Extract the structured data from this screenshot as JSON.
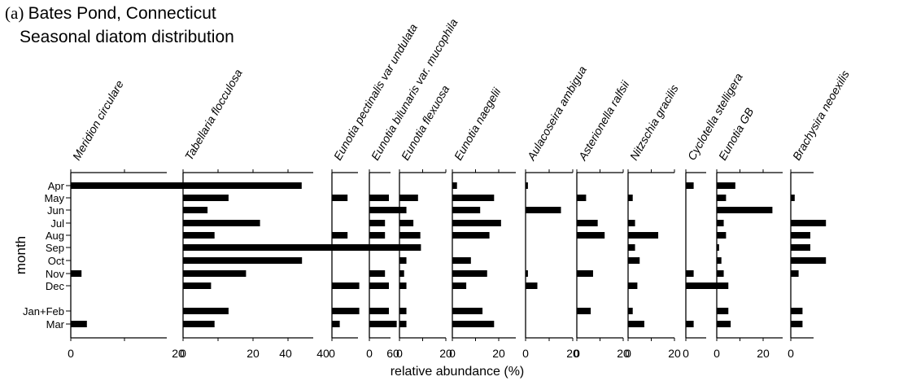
{
  "title_prefix": "(a)",
  "title_line1": "Bates Pond, Connecticut",
  "title_line2": "Seasonal diatom distribution",
  "chart_data": {
    "type": "bar",
    "orientation": "horizontal",
    "ylabel": "month",
    "xlabel": "relative abundance (%)",
    "categories": [
      "Apr",
      "May",
      "Jun",
      "Jul",
      "Aug",
      "Sep",
      "Oct",
      "Nov",
      "Dec",
      "Jan+Feb",
      "Mar"
    ],
    "series": [
      {
        "name": "Meridion circulare",
        "xlim": [
          0,
          50
        ],
        "ticks": [
          0,
          20,
          40
        ],
        "values": [
          43,
          0,
          0,
          0,
          0,
          0,
          0,
          2,
          0,
          0,
          3
        ]
      },
      {
        "name": "Tabellaria flocculosa",
        "xlim": [
          0,
          75
        ],
        "ticks": [
          0,
          20,
          40,
          60
        ],
        "values": [
          26,
          13,
          7,
          22,
          9,
          68,
          34,
          18,
          8,
          13,
          9
        ]
      },
      {
        "name": "Eunotia pectinalis var undulata",
        "xlim": [
          0,
          12
        ],
        "ticks": [
          0
        ],
        "values": [
          0,
          4,
          0,
          0,
          4,
          0,
          0,
          0,
          7,
          7,
          2
        ]
      },
      {
        "name": "Eunotia bilunaris var. mucophila",
        "xlim": [
          0,
          12
        ],
        "ticks": [
          0
        ],
        "values": [
          0,
          5,
          9,
          4,
          4,
          0,
          0,
          4,
          5,
          5,
          7
        ]
      },
      {
        "name": "Eunotia flexuosa",
        "xlim": [
          0,
          20
        ],
        "ticks": [
          0,
          20
        ],
        "values": [
          0,
          8,
          3,
          6,
          9,
          9,
          3,
          2,
          3,
          3,
          3
        ]
      },
      {
        "name": "Eunotia naegelii",
        "xlim": [
          0,
          30
        ],
        "ticks": [
          0,
          20
        ],
        "values": [
          2,
          18,
          12,
          21,
          16,
          0,
          8,
          15,
          6,
          13,
          18
        ]
      },
      {
        "name": "Aulacoseira ambigua",
        "xlim": [
          0,
          25
        ],
        "ticks": [
          0,
          20
        ],
        "values": [
          1,
          0,
          15,
          0,
          0,
          0,
          0,
          1,
          5,
          0,
          0
        ]
      },
      {
        "name": "Asterionella ralfsii",
        "xlim": [
          0,
          20
        ],
        "ticks": [
          0,
          20
        ],
        "values": [
          0,
          4,
          0,
          9,
          12,
          0,
          0,
          7,
          0,
          6,
          0
        ]
      },
      {
        "name": "Nitzschia gracilis",
        "xlim": [
          0,
          20
        ],
        "ticks": [
          0,
          20
        ],
        "values": [
          0,
          2,
          0,
          3,
          13,
          3,
          5,
          0,
          4,
          2,
          7
        ]
      },
      {
        "name": "Cyclotella stelligera",
        "xlim": [
          0,
          12
        ],
        "ticks": [
          0
        ],
        "values": [
          2,
          0,
          0,
          0,
          0,
          0,
          0,
          2,
          8,
          0,
          2
        ]
      },
      {
        "name": "Eunotia GB",
        "xlim": [
          0,
          30
        ],
        "ticks": [
          0,
          20
        ],
        "values": [
          8,
          4,
          24,
          3,
          4,
          1,
          2,
          3,
          5,
          5,
          6
        ]
      },
      {
        "name": "Brachysira neoexilis",
        "xlim": [
          0,
          12
        ],
        "ticks": [
          0
        ],
        "values": [
          0,
          1,
          0,
          9,
          5,
          5,
          9,
          2,
          0,
          3,
          3
        ]
      }
    ]
  }
}
